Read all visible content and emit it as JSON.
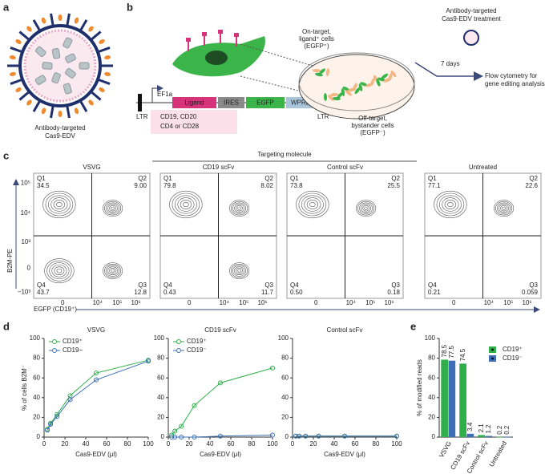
{
  "panels": {
    "a": {
      "label": "a",
      "caption": [
        "Antibody-targeted",
        "Cas9-EDV"
      ]
    },
    "b": {
      "label": "b",
      "construct": [
        "LTR",
        "EF1a",
        "Ligand",
        "IRES",
        "EGFP",
        "WPRE",
        "LTR"
      ],
      "ligands": [
        "CD19, CD20",
        "CD4 or CD28"
      ],
      "on_target": [
        "On-target,",
        "ligand⁺ cells",
        "(EGFP⁺)"
      ],
      "off_target": [
        "Off-target,",
        "bystander cells",
        "(EGFP⁻)"
      ],
      "treatment": [
        "Antibody-targeted",
        "Cas9-EDV treatment"
      ],
      "duration": "7 days",
      "readout": [
        "Flow cytometry for",
        "gene editing analysis"
      ]
    },
    "c": {
      "label": "c",
      "group_title": "Targeting molecule",
      "y_label": "B2M-PE",
      "x_label": "EGFP (CD19⁺)",
      "yticks": [
        "10⁵",
        "10⁴",
        "10³",
        "0",
        "−10³"
      ],
      "xticks": [
        "0",
        "10⁴",
        "10⁵",
        "10⁶"
      ],
      "plots": [
        {
          "title": "VSVG",
          "quadrants": [
            [
              "Q1",
              "34.5"
            ],
            [
              "Q2",
              "9.00"
            ],
            [
              "Q3",
              "12.8"
            ],
            [
              "Q4",
              "43.7"
            ]
          ]
        },
        {
          "title": "CD19 scFv",
          "quadrants": [
            [
              "Q1",
              "79.8"
            ],
            [
              "Q2",
              "8.02"
            ],
            [
              "Q3",
              "11.7"
            ],
            [
              "Q4",
              "0.43"
            ]
          ]
        },
        {
          "title": "Control scFv",
          "quadrants": [
            [
              "Q1",
              "73.8"
            ],
            [
              "Q2",
              "25.5"
            ],
            [
              "Q3",
              "0.18"
            ],
            [
              "Q4",
              "0.50"
            ]
          ]
        },
        {
          "title": "Untreated",
          "quadrants": [
            [
              "Q1",
              "77.1"
            ],
            [
              "Q2",
              "22.6"
            ],
            [
              "Q3",
              "0.059"
            ],
            [
              "Q4",
              "0.21"
            ]
          ]
        }
      ]
    },
    "d": {
      "label": "d"
    },
    "e": {
      "label": "e"
    }
  },
  "chart_data": [
    {
      "type": "line",
      "title": "VSVG",
      "x_label": "Cas9-EDV (μl)",
      "y_label": "% of cells B2M⁻",
      "x": [
        3.125,
        6.25,
        12.5,
        25,
        50,
        100
      ],
      "xlim": [
        0,
        100
      ],
      "xticks": [
        0,
        20,
        40,
        60,
        80,
        100
      ],
      "ylim": [
        0,
        100
      ],
      "yticks": [
        0,
        20,
        40,
        60,
        80,
        100
      ],
      "legend": "upper left",
      "series": [
        {
          "name": "CD19⁺",
          "color": "#2fae4a",
          "values": [
            8,
            14,
            23,
            42,
            65,
            78
          ]
        },
        {
          "name": "CD19−",
          "color": "#3d6fb6",
          "values": [
            7,
            13,
            21,
            38,
            58,
            77
          ]
        }
      ]
    },
    {
      "type": "line",
      "title": "CD19 scFv",
      "x_label": "Cas9-EDV (μl)",
      "x": [
        3.125,
        6.25,
        12.5,
        25,
        50,
        100
      ],
      "xlim": [
        0,
        100
      ],
      "xticks": [
        0,
        20,
        40,
        60,
        80,
        100
      ],
      "ylim": [
        0,
        100
      ],
      "yticks": [
        0,
        20,
        40,
        60,
        80,
        100
      ],
      "legend": "upper left",
      "series": [
        {
          "name": "CD19⁺",
          "color": "#2fae4a",
          "values": [
            2,
            6,
            11,
            32,
            55,
            70
          ]
        },
        {
          "name": "CD19⁻",
          "color": "#3d6fb6",
          "values": [
            0,
            0,
            0,
            0,
            1,
            2
          ]
        }
      ]
    },
    {
      "type": "line",
      "title": "Control scFv",
      "x_label": "Cas9-EDV (μl)",
      "x": [
        3.125,
        6.25,
        12.5,
        25,
        50,
        100
      ],
      "xlim": [
        0,
        100
      ],
      "xticks": [
        0,
        20,
        40,
        60,
        80,
        100
      ],
      "ylim": [
        0,
        100
      ],
      "yticks": [
        0,
        20,
        40,
        60,
        80,
        100
      ],
      "series": [
        {
          "color": "#2fae4a",
          "values": [
            1,
            1,
            1,
            1,
            1,
            1
          ]
        },
        {
          "color": "#3d6fb6",
          "values": [
            1,
            1,
            1,
            1,
            1,
            1
          ]
        }
      ]
    },
    {
      "type": "bar",
      "y_label": "% of modified reads",
      "categories": [
        "VSVG",
        "CD19 scFv",
        "Control scFv",
        "Untreated"
      ],
      "ylim": [
        0,
        100
      ],
      "yticks": [
        0,
        20,
        40,
        60,
        80,
        100
      ],
      "legend": "upper right",
      "series": [
        {
          "name": "CD19⁺",
          "color": "#2fae4a",
          "values": [
            78.5,
            74.5,
            2.1,
            0.2
          ]
        },
        {
          "name": "CD19⁻",
          "color": "#3d6fb6",
          "values": [
            77.5,
            3.4,
            1.2,
            0.2
          ]
        }
      ]
    }
  ]
}
